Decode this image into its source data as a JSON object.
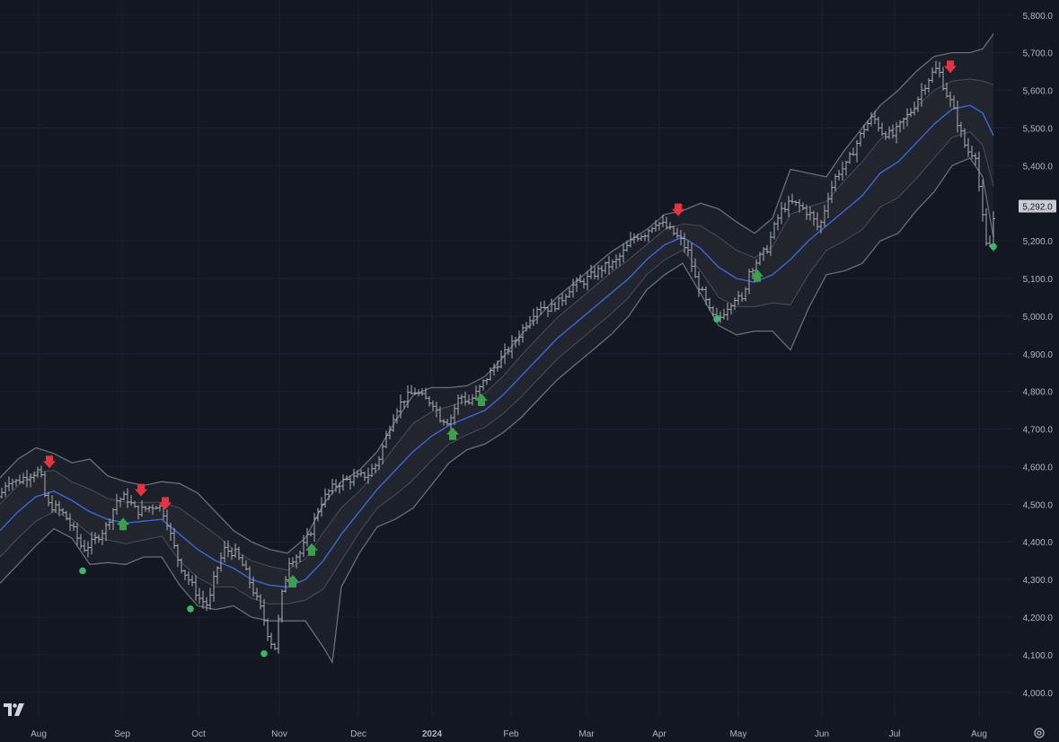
{
  "colors": {
    "background": "#131722",
    "grid": "#1c2030",
    "axis_text": "#b2b5be",
    "bar": "#a9acb3",
    "basis": "#3a68d8",
    "outer_band": "#6a6d76",
    "inner_band": "#4a4d56",
    "band_fill": "#1d202b",
    "sell_arrow": "#e5333f",
    "buy_arrow": "#3d9e50",
    "dot": "#3fb56a",
    "last_price_bg": "#c9ccd3"
  },
  "icons": {
    "logo": "tradingview-logo-icon",
    "settings": "settings-icon"
  },
  "chart_data": {
    "type": "ohlc",
    "title": "",
    "price_axis": {
      "ticks": [
        "5,800.0",
        "5,700.0",
        "5,600.0",
        "5,500.0",
        "5,400.0",
        "5,200.0",
        "5,100.0",
        "5,000.0",
        "4,900.0",
        "4,800.0",
        "4,700.0",
        "4,600.0",
        "4,500.0",
        "4,400.0",
        "4,300.0",
        "4,200.0",
        "4,100.0",
        "4,000.0"
      ],
      "tick_values": [
        5800,
        5700,
        5600,
        5500,
        5400,
        5200,
        5100,
        5000,
        4900,
        4800,
        4700,
        4600,
        4500,
        4400,
        4300,
        4200,
        4100,
        4000
      ],
      "ylim": [
        3935,
        5840
      ],
      "last_price": "5,292.0",
      "last_value": 5292
    },
    "time_axis": {
      "labels": [
        "Aug",
        "Sep",
        "Oct",
        "Nov",
        "Dec",
        "2024",
        "Feb",
        "Mar",
        "Apr",
        "May",
        "Jun",
        "Jul",
        "Aug"
      ],
      "bold": [
        false,
        false,
        false,
        false,
        false,
        true,
        false,
        false,
        false,
        false,
        false,
        false,
        false
      ]
    },
    "grid": true,
    "price_path": [
      [
        0,
        4520
      ],
      [
        8,
        4565
      ],
      [
        18,
        4560
      ],
      [
        30,
        4575
      ],
      [
        44,
        4590
      ],
      [
        52,
        4500
      ],
      [
        62,
        4490
      ],
      [
        72,
        4470
      ],
      [
        82,
        4430
      ],
      [
        92,
        4380
      ],
      [
        104,
        4400
      ],
      [
        118,
        4440
      ],
      [
        130,
        4510
      ],
      [
        140,
        4520
      ],
      [
        152,
        4480
      ],
      [
        164,
        4490
      ],
      [
        176,
        4500
      ],
      [
        184,
        4470
      ],
      [
        192,
        4400
      ],
      [
        200,
        4340
      ],
      [
        210,
        4300
      ],
      [
        222,
        4250
      ],
      [
        232,
        4230
      ],
      [
        240,
        4320
      ],
      [
        250,
        4380
      ],
      [
        262,
        4370
      ],
      [
        272,
        4330
      ],
      [
        282,
        4270
      ],
      [
        292,
        4210
      ],
      [
        300,
        4140
      ],
      [
        306,
        4120
      ],
      [
        314,
        4260
      ],
      [
        322,
        4350
      ],
      [
        334,
        4370
      ],
      [
        346,
        4430
      ],
      [
        356,
        4500
      ],
      [
        368,
        4540
      ],
      [
        380,
        4560
      ],
      [
        395,
        4570
      ],
      [
        410,
        4580
      ],
      [
        420,
        4610
      ],
      [
        430,
        4680
      ],
      [
        440,
        4750
      ],
      [
        450,
        4780
      ],
      [
        462,
        4800
      ],
      [
        472,
        4780
      ],
      [
        482,
        4770
      ],
      [
        490,
        4730
      ],
      [
        500,
        4720
      ],
      [
        512,
        4790
      ],
      [
        522,
        4770
      ],
      [
        532,
        4800
      ],
      [
        540,
        4830
      ],
      [
        552,
        4870
      ],
      [
        562,
        4900
      ],
      [
        575,
        4940
      ],
      [
        588,
        4990
      ],
      [
        600,
        5030
      ],
      [
        612,
        5020
      ],
      [
        624,
        5040
      ],
      [
        636,
        5080
      ],
      [
        648,
        5090
      ],
      [
        660,
        5110
      ],
      [
        672,
        5130
      ],
      [
        684,
        5140
      ],
      [
        694,
        5170
      ],
      [
        706,
        5210
      ],
      [
        718,
        5220
      ],
      [
        730,
        5250
      ],
      [
        740,
        5240
      ],
      [
        750,
        5220
      ],
      [
        758,
        5200
      ],
      [
        766,
        5170
      ],
      [
        774,
        5100
      ],
      [
        784,
        5050
      ],
      [
        792,
        5000
      ],
      [
        800,
        4990
      ],
      [
        808,
        5020
      ],
      [
        818,
        5050
      ],
      [
        826,
        5040
      ],
      [
        834,
        5120
      ],
      [
        844,
        5150
      ],
      [
        854,
        5180
      ],
      [
        864,
        5250
      ],
      [
        872,
        5290
      ],
      [
        882,
        5300
      ],
      [
        892,
        5290
      ],
      [
        902,
        5270
      ],
      [
        912,
        5230
      ],
      [
        922,
        5320
      ],
      [
        932,
        5380
      ],
      [
        942,
        5400
      ],
      [
        952,
        5450
      ],
      [
        962,
        5500
      ],
      [
        972,
        5530
      ],
      [
        982,
        5490
      ],
      [
        994,
        5480
      ],
      [
        1006,
        5520
      ],
      [
        1016,
        5550
      ],
      [
        1026,
        5600
      ],
      [
        1036,
        5640
      ],
      [
        1044,
        5660
      ],
      [
        1052,
        5600
      ],
      [
        1060,
        5560
      ],
      [
        1068,
        5500
      ],
      [
        1076,
        5440
      ],
      [
        1086,
        5430
      ],
      [
        1094,
        5260
      ],
      [
        1100,
        5150
      ],
      [
        1106,
        5260
      ]
    ],
    "basis": [
      [
        0,
        4430
      ],
      [
        20,
        4480
      ],
      [
        40,
        4520
      ],
      [
        60,
        4535
      ],
      [
        80,
        4510
      ],
      [
        100,
        4480
      ],
      [
        120,
        4460
      ],
      [
        140,
        4450
      ],
      [
        160,
        4455
      ],
      [
        180,
        4460
      ],
      [
        200,
        4420
      ],
      [
        220,
        4380
      ],
      [
        240,
        4350
      ],
      [
        260,
        4330
      ],
      [
        280,
        4300
      ],
      [
        300,
        4285
      ],
      [
        320,
        4280
      ],
      [
        340,
        4300
      ],
      [
        360,
        4350
      ],
      [
        380,
        4420
      ],
      [
        400,
        4480
      ],
      [
        420,
        4540
      ],
      [
        440,
        4590
      ],
      [
        460,
        4640
      ],
      [
        480,
        4680
      ],
      [
        500,
        4710
      ],
      [
        520,
        4730
      ],
      [
        540,
        4750
      ],
      [
        560,
        4790
      ],
      [
        580,
        4840
      ],
      [
        600,
        4890
      ],
      [
        620,
        4940
      ],
      [
        640,
        4980
      ],
      [
        660,
        5020
      ],
      [
        680,
        5060
      ],
      [
        700,
        5100
      ],
      [
        720,
        5150
      ],
      [
        740,
        5190
      ],
      [
        760,
        5210
      ],
      [
        780,
        5180
      ],
      [
        800,
        5130
      ],
      [
        820,
        5100
      ],
      [
        840,
        5090
      ],
      [
        860,
        5110
      ],
      [
        880,
        5150
      ],
      [
        900,
        5200
      ],
      [
        920,
        5240
      ],
      [
        940,
        5280
      ],
      [
        960,
        5320
      ],
      [
        980,
        5380
      ],
      [
        1000,
        5410
      ],
      [
        1020,
        5460
      ],
      [
        1040,
        5510
      ],
      [
        1060,
        5550
      ],
      [
        1080,
        5560
      ],
      [
        1094,
        5540
      ],
      [
        1106,
        5480
      ]
    ],
    "upper_outer": [
      [
        0,
        4570
      ],
      [
        20,
        4620
      ],
      [
        40,
        4650
      ],
      [
        60,
        4635
      ],
      [
        80,
        4610
      ],
      [
        100,
        4620
      ],
      [
        120,
        4575
      ],
      [
        140,
        4560
      ],
      [
        160,
        4550
      ],
      [
        180,
        4560
      ],
      [
        200,
        4555
      ],
      [
        220,
        4530
      ],
      [
        240,
        4480
      ],
      [
        260,
        4430
      ],
      [
        280,
        4400
      ],
      [
        300,
        4380
      ],
      [
        320,
        4370
      ],
      [
        340,
        4410
      ],
      [
        360,
        4500
      ],
      [
        380,
        4560
      ],
      [
        400,
        4590
      ],
      [
        420,
        4640
      ],
      [
        440,
        4720
      ],
      [
        460,
        4790
      ],
      [
        480,
        4810
      ],
      [
        500,
        4810
      ],
      [
        520,
        4815
      ],
      [
        540,
        4840
      ],
      [
        560,
        4890
      ],
      [
        580,
        4950
      ],
      [
        600,
        5000
      ],
      [
        620,
        5050
      ],
      [
        640,
        5090
      ],
      [
        660,
        5130
      ],
      [
        680,
        5170
      ],
      [
        700,
        5200
      ],
      [
        720,
        5230
      ],
      [
        740,
        5270
      ],
      [
        760,
        5280
      ],
      [
        780,
        5300
      ],
      [
        800,
        5285
      ],
      [
        820,
        5250
      ],
      [
        840,
        5220
      ],
      [
        860,
        5260
      ],
      [
        880,
        5390
      ],
      [
        900,
        5380
      ],
      [
        920,
        5370
      ],
      [
        940,
        5440
      ],
      [
        960,
        5500
      ],
      [
        980,
        5560
      ],
      [
        1000,
        5600
      ],
      [
        1020,
        5650
      ],
      [
        1040,
        5690
      ],
      [
        1060,
        5700
      ],
      [
        1080,
        5700
      ],
      [
        1094,
        5710
      ],
      [
        1106,
        5750
      ]
    ],
    "upper_inner": [
      [
        0,
        4500
      ],
      [
        20,
        4550
      ],
      [
        40,
        4585
      ],
      [
        60,
        4590
      ],
      [
        80,
        4560
      ],
      [
        100,
        4540
      ],
      [
        120,
        4515
      ],
      [
        140,
        4505
      ],
      [
        160,
        4505
      ],
      [
        180,
        4505
      ],
      [
        200,
        4490
      ],
      [
        220,
        4455
      ],
      [
        240,
        4420
      ],
      [
        260,
        4380
      ],
      [
        280,
        4350
      ],
      [
        300,
        4335
      ],
      [
        320,
        4325
      ],
      [
        340,
        4355
      ],
      [
        360,
        4425
      ],
      [
        380,
        4490
      ],
      [
        400,
        4535
      ],
      [
        420,
        4590
      ],
      [
        440,
        4655
      ],
      [
        460,
        4715
      ],
      [
        480,
        4745
      ],
      [
        500,
        4760
      ],
      [
        520,
        4775
      ],
      [
        540,
        4795
      ],
      [
        560,
        4840
      ],
      [
        580,
        4895
      ],
      [
        600,
        4945
      ],
      [
        620,
        4995
      ],
      [
        640,
        5035
      ],
      [
        660,
        5075
      ],
      [
        680,
        5115
      ],
      [
        700,
        5150
      ],
      [
        720,
        5190
      ],
      [
        740,
        5230
      ],
      [
        760,
        5245
      ],
      [
        780,
        5240
      ],
      [
        800,
        5210
      ],
      [
        820,
        5175
      ],
      [
        840,
        5155
      ],
      [
        860,
        5185
      ],
      [
        880,
        5270
      ],
      [
        900,
        5290
      ],
      [
        920,
        5305
      ],
      [
        940,
        5360
      ],
      [
        960,
        5410
      ],
      [
        980,
        5470
      ],
      [
        1000,
        5505
      ],
      [
        1020,
        5555
      ],
      [
        1040,
        5600
      ],
      [
        1060,
        5625
      ],
      [
        1080,
        5630
      ],
      [
        1094,
        5625
      ],
      [
        1106,
        5615
      ]
    ],
    "lower_inner": [
      [
        0,
        4360
      ],
      [
        20,
        4410
      ],
      [
        40,
        4455
      ],
      [
        60,
        4480
      ],
      [
        80,
        4460
      ],
      [
        100,
        4420
      ],
      [
        120,
        4405
      ],
      [
        140,
        4395
      ],
      [
        160,
        4405
      ],
      [
        180,
        4415
      ],
      [
        200,
        4350
      ],
      [
        220,
        4305
      ],
      [
        240,
        4280
      ],
      [
        260,
        4280
      ],
      [
        280,
        4250
      ],
      [
        300,
        4235
      ],
      [
        320,
        4235
      ],
      [
        340,
        4245
      ],
      [
        360,
        4275
      ],
      [
        380,
        4350
      ],
      [
        400,
        4425
      ],
      [
        420,
        4490
      ],
      [
        440,
        4525
      ],
      [
        460,
        4565
      ],
      [
        480,
        4615
      ],
      [
        500,
        4660
      ],
      [
        520,
        4685
      ],
      [
        540,
        4705
      ],
      [
        560,
        4740
      ],
      [
        580,
        4785
      ],
      [
        600,
        4835
      ],
      [
        620,
        4885
      ],
      [
        640,
        4925
      ],
      [
        660,
        4965
      ],
      [
        680,
        5005
      ],
      [
        700,
        5050
      ],
      [
        720,
        5110
      ],
      [
        740,
        5150
      ],
      [
        760,
        5175
      ],
      [
        780,
        5120
      ],
      [
        800,
        5050
      ],
      [
        820,
        5025
      ],
      [
        840,
        5025
      ],
      [
        860,
        5035
      ],
      [
        880,
        5030
      ],
      [
        900,
        5110
      ],
      [
        920,
        5175
      ],
      [
        940,
        5200
      ],
      [
        960,
        5230
      ],
      [
        980,
        5290
      ],
      [
        1000,
        5315
      ],
      [
        1020,
        5365
      ],
      [
        1040,
        5420
      ],
      [
        1060,
        5475
      ],
      [
        1080,
        5490
      ],
      [
        1094,
        5455
      ],
      [
        1106,
        5345
      ]
    ],
    "lower_outer": [
      [
        0,
        4290
      ],
      [
        20,
        4340
      ],
      [
        40,
        4390
      ],
      [
        60,
        4435
      ],
      [
        80,
        4410
      ],
      [
        100,
        4340
      ],
      [
        120,
        4345
      ],
      [
        140,
        4340
      ],
      [
        160,
        4360
      ],
      [
        180,
        4360
      ],
      [
        200,
        4285
      ],
      [
        220,
        4230
      ],
      [
        240,
        4220
      ],
      [
        260,
        4230
      ],
      [
        280,
        4200
      ],
      [
        300,
        4190
      ],
      [
        320,
        4190
      ],
      [
        340,
        4190
      ],
      [
        360,
        4120
      ],
      [
        370,
        4080
      ],
      [
        380,
        4280
      ],
      [
        400,
        4370
      ],
      [
        420,
        4440
      ],
      [
        440,
        4460
      ],
      [
        460,
        4490
      ],
      [
        480,
        4550
      ],
      [
        500,
        4610
      ],
      [
        520,
        4645
      ],
      [
        540,
        4660
      ],
      [
        560,
        4690
      ],
      [
        580,
        4730
      ],
      [
        600,
        4780
      ],
      [
        620,
        4830
      ],
      [
        640,
        4870
      ],
      [
        660,
        4910
      ],
      [
        680,
        4950
      ],
      [
        700,
        5000
      ],
      [
        720,
        5070
      ],
      [
        740,
        5110
      ],
      [
        760,
        5140
      ],
      [
        780,
        5060
      ],
      [
        800,
        4975
      ],
      [
        820,
        4950
      ],
      [
        840,
        4960
      ],
      [
        860,
        4960
      ],
      [
        880,
        4910
      ],
      [
        900,
        5020
      ],
      [
        920,
        5110
      ],
      [
        940,
        5120
      ],
      [
        960,
        5140
      ],
      [
        980,
        5200
      ],
      [
        1000,
        5220
      ],
      [
        1020,
        5280
      ],
      [
        1040,
        5330
      ],
      [
        1060,
        5400
      ],
      [
        1080,
        5420
      ],
      [
        1094,
        5370
      ],
      [
        1106,
        5210
      ]
    ],
    "sell_signals": [
      [
        55,
        4610
      ],
      [
        157,
        4535
      ],
      [
        184,
        4500
      ],
      [
        755,
        5280
      ],
      [
        1058,
        5660
      ]
    ],
    "buy_signals": [
      [
        137,
        4450
      ],
      [
        326,
        4298
      ],
      [
        347,
        4382
      ],
      [
        504,
        4690
      ],
      [
        536,
        4780
      ],
      [
        843,
        5110
      ]
    ],
    "dots": [
      [
        92,
        4323
      ],
      [
        212,
        4222
      ],
      [
        294,
        4103
      ],
      [
        798,
        4992
      ],
      [
        1106,
        5185
      ]
    ]
  }
}
